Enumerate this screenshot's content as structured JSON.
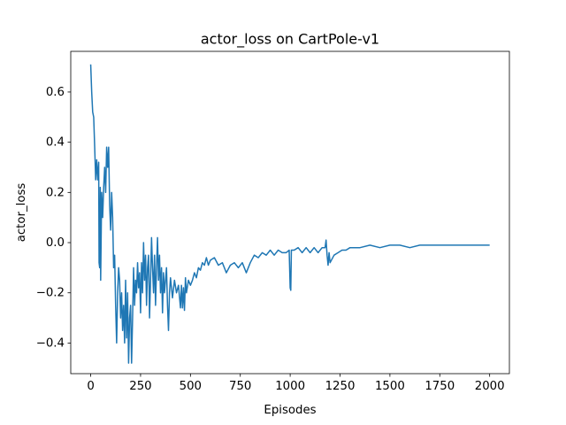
{
  "chart_data": {
    "type": "line",
    "title": "actor_loss on CartPole-v1",
    "xlabel": "Episodes",
    "ylabel": "actor_loss",
    "color": "#1f77b4",
    "x": [
      0,
      5,
      10,
      15,
      20,
      25,
      30,
      35,
      40,
      42,
      45,
      48,
      50,
      55,
      60,
      65,
      70,
      75,
      80,
      85,
      90,
      95,
      100,
      105,
      110,
      115,
      120,
      125,
      130,
      135,
      140,
      145,
      150,
      155,
      160,
      165,
      170,
      175,
      180,
      185,
      190,
      195,
      200,
      205,
      210,
      215,
      220,
      225,
      230,
      235,
      240,
      245,
      250,
      255,
      260,
      265,
      270,
      275,
      280,
      285,
      290,
      295,
      300,
      305,
      310,
      315,
      320,
      325,
      330,
      335,
      340,
      345,
      350,
      355,
      360,
      365,
      370,
      375,
      380,
      385,
      390,
      395,
      400,
      410,
      420,
      430,
      440,
      450,
      455,
      460,
      465,
      470,
      475,
      480,
      490,
      500,
      510,
      520,
      530,
      540,
      550,
      560,
      570,
      580,
      590,
      600,
      620,
      640,
      660,
      680,
      700,
      720,
      740,
      760,
      780,
      800,
      820,
      840,
      860,
      880,
      900,
      920,
      940,
      960,
      980,
      995,
      1000,
      1003,
      1006,
      1020,
      1040,
      1060,
      1080,
      1100,
      1120,
      1140,
      1160,
      1175,
      1180,
      1185,
      1190,
      1195,
      1200,
      1220,
      1240,
      1260,
      1280,
      1300,
      1350,
      1400,
      1450,
      1500,
      1550,
      1600,
      1650,
      1700,
      1750,
      1800,
      1850,
      1900,
      1950,
      2000
    ],
    "values": [
      0.71,
      0.6,
      0.52,
      0.5,
      0.38,
      0.25,
      0.33,
      0.25,
      0.32,
      -0.08,
      -0.1,
      0.22,
      -0.15,
      0.2,
      0.1,
      0.22,
      0.3,
      0.2,
      0.38,
      0.3,
      0.38,
      0.15,
      0.05,
      0.2,
      0.1,
      -0.1,
      -0.05,
      -0.25,
      -0.4,
      -0.2,
      -0.1,
      -0.15,
      -0.3,
      -0.2,
      -0.35,
      -0.25,
      -0.4,
      -0.15,
      -0.38,
      -0.2,
      -0.48,
      -0.3,
      -0.25,
      -0.48,
      -0.3,
      -0.1,
      -0.25,
      -0.15,
      -0.2,
      -0.08,
      -0.18,
      -0.12,
      -0.28,
      -0.08,
      -0.2,
      0.0,
      -0.15,
      -0.05,
      -0.25,
      -0.1,
      -0.05,
      -0.3,
      -0.15,
      0.02,
      -0.1,
      -0.2,
      -0.05,
      -0.25,
      -0.1,
      0.02,
      -0.15,
      -0.05,
      -0.2,
      -0.1,
      -0.28,
      -0.12,
      -0.2,
      -0.15,
      -0.1,
      -0.25,
      -0.35,
      -0.2,
      -0.14,
      -0.22,
      -0.15,
      -0.2,
      -0.17,
      -0.26,
      -0.17,
      -0.26,
      -0.18,
      -0.27,
      -0.14,
      -0.2,
      -0.15,
      -0.17,
      -0.15,
      -0.12,
      -0.14,
      -0.1,
      -0.11,
      -0.08,
      -0.09,
      -0.06,
      -0.09,
      -0.07,
      -0.06,
      -0.09,
      -0.08,
      -0.12,
      -0.09,
      -0.08,
      -0.1,
      -0.08,
      -0.12,
      -0.08,
      -0.05,
      -0.06,
      -0.04,
      -0.05,
      -0.03,
      -0.05,
      -0.03,
      -0.04,
      -0.04,
      -0.03,
      -0.18,
      -0.19,
      -0.03,
      -0.03,
      -0.02,
      -0.04,
      -0.02,
      -0.04,
      -0.02,
      -0.04,
      -0.02,
      -0.02,
      0.01,
      -0.05,
      -0.09,
      -0.04,
      -0.08,
      -0.05,
      -0.04,
      -0.03,
      -0.03,
      -0.02,
      -0.02,
      -0.01,
      -0.02,
      -0.01,
      -0.01,
      -0.02,
      -0.01,
      -0.01,
      -0.01,
      -0.01,
      -0.01,
      -0.01,
      -0.01,
      -0.01
    ],
    "xlim": [
      -100,
      2099
    ],
    "ylim": [
      -0.522,
      0.762
    ],
    "xticks": [
      0,
      250,
      500,
      750,
      1000,
      1250,
      1500,
      1750,
      2000
    ],
    "yticks": [
      {
        "value": -0.4,
        "label": "−0.4"
      },
      {
        "value": -0.2,
        "label": "−0.2"
      },
      {
        "value": 0,
        "label": "0.0"
      },
      0.2,
      0.4,
      0.6
    ]
  }
}
